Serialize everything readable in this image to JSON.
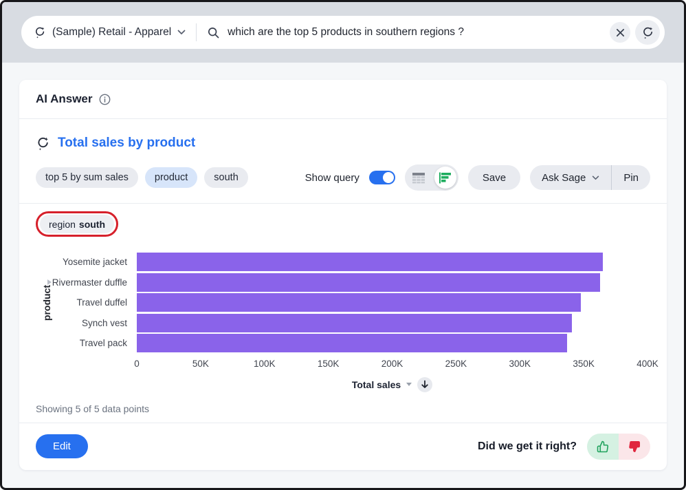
{
  "topbar": {
    "datasource_label": "(Sample) Retail - Apparel",
    "search_query": "which are the top 5 products in southern regions ?"
  },
  "panel": {
    "title": "AI Answer",
    "answer_title": "Total sales by product",
    "tokens": [
      {
        "label": "top 5 by sum sales"
      },
      {
        "label": "product"
      },
      {
        "label": "south"
      }
    ],
    "toolbar": {
      "show_query_label": "Show query",
      "show_query_on": true,
      "save_label": "Save",
      "ask_sage_label": "Ask Sage",
      "pin_label": "Pin"
    },
    "filter_chip": {
      "attribute": "region",
      "value": "south"
    },
    "status_text": "Showing 5 of 5 data points",
    "edit_label": "Edit",
    "feedback_prompt": "Did we get it right?"
  },
  "chart_data": {
    "type": "bar",
    "orientation": "horizontal",
    "title": "Total sales by product",
    "categories": [
      "Yosemite jacket",
      "Rivermaster duffle",
      "Travel duffel",
      "Synch vest",
      "Travel pack"
    ],
    "values": [
      365000,
      363000,
      348000,
      341000,
      337000
    ],
    "xlabel": "Total sales",
    "ylabel": "product",
    "xlim": [
      0,
      400000
    ],
    "xtick_labels": [
      "0",
      "50K",
      "100K",
      "150K",
      "200K",
      "250K",
      "300K",
      "350K",
      "400K"
    ],
    "sort": "descending",
    "legend": false,
    "bar_color": "#8A63EA"
  },
  "colors": {
    "accent_blue": "#2770EF",
    "bar_purple": "#8A63EA",
    "chip_blue_bg": "#D7E5FA",
    "annotation_red": "#D6202B",
    "viz_icon_green": "#1FAD5F",
    "thumb_up_green": "#1FA25C",
    "thumb_down_red": "#E0263E"
  }
}
